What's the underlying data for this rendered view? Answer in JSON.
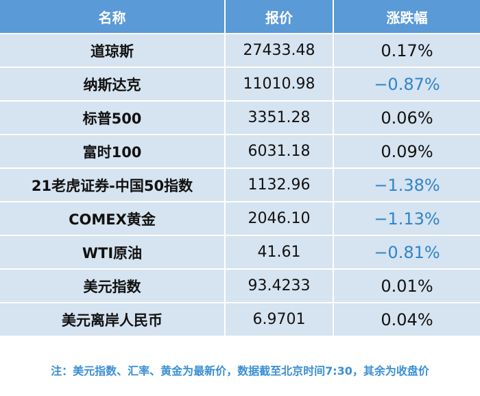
{
  "table": {
    "headers": [
      "名称",
      "报价",
      "涨跌幅"
    ],
    "rows": [
      {
        "name": "道琼斯",
        "price": "27433.48",
        "change": "0.17%",
        "direction": "up"
      },
      {
        "name": "纳斯达克",
        "price": "11010.98",
        "change": "−0.87%",
        "direction": "down"
      },
      {
        "name": "标普500",
        "price": "3351.28",
        "change": "0.06%",
        "direction": "up"
      },
      {
        "name": "富时100",
        "price": "6031.18",
        "change": "0.09%",
        "direction": "up"
      },
      {
        "name": "21老虎证券-中国50指数",
        "price": "1132.96",
        "change": "−1.38%",
        "direction": "down"
      },
      {
        "name": "COMEX黄金",
        "price": "2046.10",
        "change": "−1.13%",
        "direction": "down"
      },
      {
        "name": "WTI原油",
        "price": "41.61",
        "change": "−0.81%",
        "direction": "down"
      },
      {
        "name": "美元指数",
        "price": "93.4233",
        "change": "0.01%",
        "direction": "up"
      },
      {
        "name": "美元离岸人民币",
        "price": "6.9701",
        "change": "0.04%",
        "direction": "up"
      }
    ]
  },
  "note": "注：美元指数、汇率、黄金为最新价，数据截至北京时间7:30，其余为收盘价",
  "colors": {
    "header_bg": "#5a9ad6",
    "row_bg": "#d6e3f0",
    "negative_text": "#2f85c8",
    "note_text": "#3a8fd4"
  }
}
